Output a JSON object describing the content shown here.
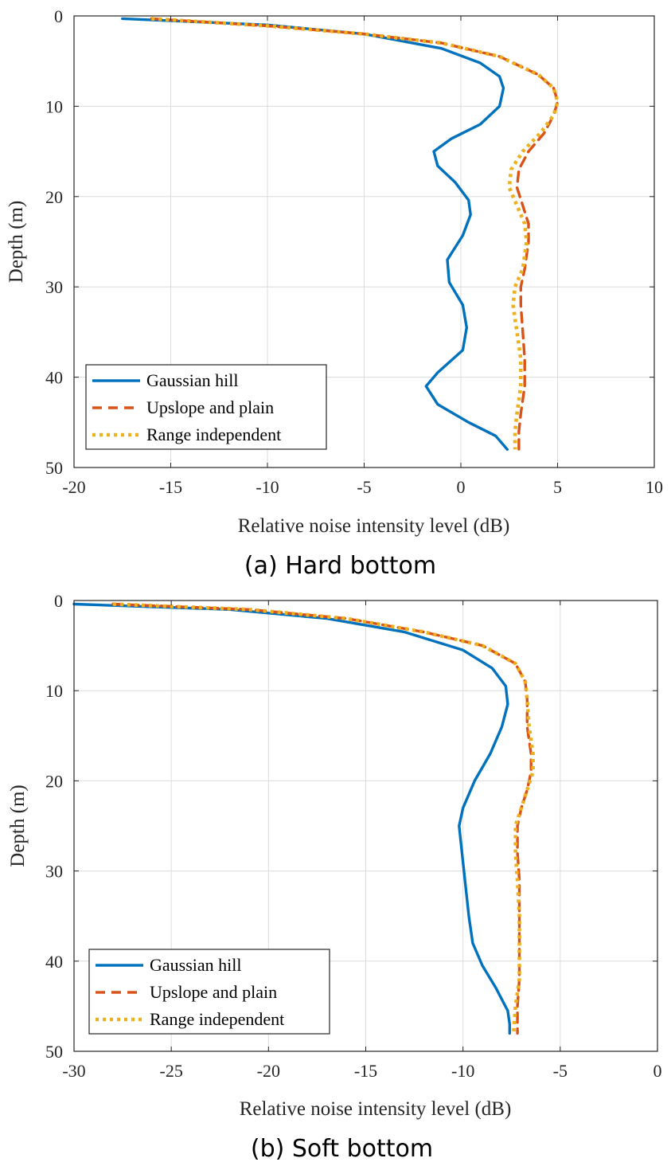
{
  "chart_data": [
    {
      "type": "line",
      "caption": "(a) Hard bottom",
      "xlabel": "Relative noise intensity level (dB)",
      "ylabel": "Depth (m)",
      "xlim": [
        -20,
        10
      ],
      "ylim": [
        0,
        50
      ],
      "y_reversed": true,
      "xticks": [
        -20,
        -15,
        -10,
        -5,
        0,
        5,
        10
      ],
      "yticks": [
        0,
        10,
        20,
        30,
        40,
        50
      ],
      "grid": true,
      "legend_position": "bottom-left",
      "series": [
        {
          "name": "Gaussian hill",
          "color": "#0072BD",
          "style": "solid",
          "points": [
            [
              -17.5,
              0.3
            ],
            [
              -10,
              1.0
            ],
            [
              -5,
              2.0
            ],
            [
              -1,
              3.6
            ],
            [
              1,
              5.2
            ],
            [
              2,
              6.7
            ],
            [
              2.2,
              8.0
            ],
            [
              2,
              10.0
            ],
            [
              1,
              12.0
            ],
            [
              -0.5,
              13.6
            ],
            [
              -1.4,
              15.0
            ],
            [
              -1.2,
              16.6
            ],
            [
              -0.3,
              18.4
            ],
            [
              0.4,
              20.4
            ],
            [
              0.5,
              22.0
            ],
            [
              0.1,
              24.3
            ],
            [
              -0.7,
              27.0
            ],
            [
              -0.6,
              29.5
            ],
            [
              0.1,
              32.0
            ],
            [
              0.3,
              34.5
            ],
            [
              0.1,
              37.0
            ],
            [
              -1.2,
              39.5
            ],
            [
              -1.8,
              41.0
            ],
            [
              -1.2,
              43.0
            ],
            [
              0.4,
              45.0
            ],
            [
              1.8,
              46.5
            ],
            [
              2.4,
              48.0
            ]
          ]
        },
        {
          "name": "Upslope and plain",
          "color": "#D95319",
          "style": "dashed",
          "points": [
            [
              -16,
              0.3
            ],
            [
              -10,
              1.1
            ],
            [
              -5,
              2.0
            ],
            [
              -1,
              3.0
            ],
            [
              2,
              4.5
            ],
            [
              4,
              6.5
            ],
            [
              4.8,
              8.0
            ],
            [
              5.0,
              9.5
            ],
            [
              4.8,
              11.0
            ],
            [
              4.3,
              13.0
            ],
            [
              3.5,
              15.0
            ],
            [
              3.0,
              17.0
            ],
            [
              2.9,
              19.0
            ],
            [
              3.2,
              21.0
            ],
            [
              3.5,
              23.0
            ],
            [
              3.5,
              25.0
            ],
            [
              3.3,
              28.0
            ],
            [
              3.1,
              30.0
            ],
            [
              3.1,
              32.0
            ],
            [
              3.2,
              35.0
            ],
            [
              3.3,
              38.0
            ],
            [
              3.3,
              41.0
            ],
            [
              3.1,
              44.0
            ],
            [
              3.0,
              46.0
            ],
            [
              3.0,
              48.0
            ]
          ]
        },
        {
          "name": "Range independent",
          "color": "#EDB120",
          "style": "dotted",
          "points": [
            [
              -16,
              0.3
            ],
            [
              -10,
              1.1
            ],
            [
              -5,
              2.0
            ],
            [
              -1,
              3.0
            ],
            [
              2,
              4.5
            ],
            [
              4,
              6.5
            ],
            [
              4.8,
              8.0
            ],
            [
              5.0,
              9.5
            ],
            [
              4.8,
              11.0
            ],
            [
              4.1,
              13.0
            ],
            [
              3.2,
              15.0
            ],
            [
              2.6,
              17.0
            ],
            [
              2.5,
              19.0
            ],
            [
              2.9,
              21.0
            ],
            [
              3.3,
              23.0
            ],
            [
              3.4,
              25.0
            ],
            [
              3.2,
              28.0
            ],
            [
              2.8,
              30.0
            ],
            [
              2.7,
              32.0
            ],
            [
              2.9,
              35.0
            ],
            [
              3.1,
              38.0
            ],
            [
              3.1,
              41.0
            ],
            [
              2.9,
              44.0
            ],
            [
              2.8,
              46.0
            ],
            [
              2.8,
              48.0
            ]
          ]
        }
      ]
    },
    {
      "type": "line",
      "caption": "(b) Soft bottom",
      "xlabel": "Relative noise intensity level (dB)",
      "ylabel": "Depth (m)",
      "xlim": [
        -30,
        0
      ],
      "ylim": [
        0,
        50
      ],
      "y_reversed": true,
      "xticks": [
        -30,
        -25,
        -20,
        -15,
        -10,
        -5,
        0
      ],
      "yticks": [
        0,
        10,
        20,
        30,
        40,
        50
      ],
      "grid": true,
      "legend_position": "bottom-left",
      "series": [
        {
          "name": "Gaussian hill",
          "color": "#0072BD",
          "style": "solid",
          "points": [
            [
              -30,
              0.4
            ],
            [
              -22,
              1.0
            ],
            [
              -17,
              2.0
            ],
            [
              -13,
              3.5
            ],
            [
              -10,
              5.5
            ],
            [
              -8.5,
              7.5
            ],
            [
              -7.8,
              9.5
            ],
            [
              -7.7,
              11.5
            ],
            [
              -8,
              14.0
            ],
            [
              -8.6,
              17.0
            ],
            [
              -9.4,
              20.0
            ],
            [
              -10,
              23.0
            ],
            [
              -10.2,
              25.0
            ],
            [
              -10.1,
              27.0
            ],
            [
              -9.9,
              31.0
            ],
            [
              -9.7,
              35.0
            ],
            [
              -9.5,
              38.0
            ],
            [
              -9.0,
              40.5
            ],
            [
              -8.3,
              43.0
            ],
            [
              -7.7,
              45.5
            ],
            [
              -7.6,
              47.0
            ],
            [
              -7.6,
              48.0
            ]
          ]
        },
        {
          "name": "Upslope and plain",
          "color": "#D95319",
          "style": "dashed",
          "points": [
            [
              -28,
              0.4
            ],
            [
              -21,
              1.0
            ],
            [
              -16,
              2.0
            ],
            [
              -12,
              3.5
            ],
            [
              -9,
              5.0
            ],
            [
              -7.3,
              7.0
            ],
            [
              -6.8,
              9.0
            ],
            [
              -6.7,
              11.0
            ],
            [
              -6.7,
              14.0
            ],
            [
              -6.5,
              17.0
            ],
            [
              -6.5,
              19.0
            ],
            [
              -6.7,
              21.0
            ],
            [
              -7.0,
              23.0
            ],
            [
              -7.2,
              25.0
            ],
            [
              -7.2,
              28.0
            ],
            [
              -7.1,
              31.0
            ],
            [
              -7.1,
              35.0
            ],
            [
              -7.1,
              38.0
            ],
            [
              -7.1,
              42.0
            ],
            [
              -7.2,
              45.0
            ],
            [
              -7.2,
              48.0
            ]
          ]
        },
        {
          "name": "Range independent",
          "color": "#EDB120",
          "style": "dotted",
          "points": [
            [
              -28,
              0.4
            ],
            [
              -21,
              1.0
            ],
            [
              -16,
              2.0
            ],
            [
              -12,
              3.5
            ],
            [
              -9,
              5.0
            ],
            [
              -7.3,
              7.0
            ],
            [
              -6.8,
              9.0
            ],
            [
              -6.7,
              11.0
            ],
            [
              -6.6,
              14.0
            ],
            [
              -6.4,
              17.0
            ],
            [
              -6.4,
              19.0
            ],
            [
              -6.7,
              21.0
            ],
            [
              -7.0,
              23.0
            ],
            [
              -7.3,
              25.0
            ],
            [
              -7.3,
              28.0
            ],
            [
              -7.2,
              31.0
            ],
            [
              -7.1,
              35.0
            ],
            [
              -7.1,
              38.0
            ],
            [
              -7.1,
              42.0
            ],
            [
              -7.3,
              45.0
            ],
            [
              -7.4,
              48.0
            ]
          ]
        }
      ]
    }
  ]
}
